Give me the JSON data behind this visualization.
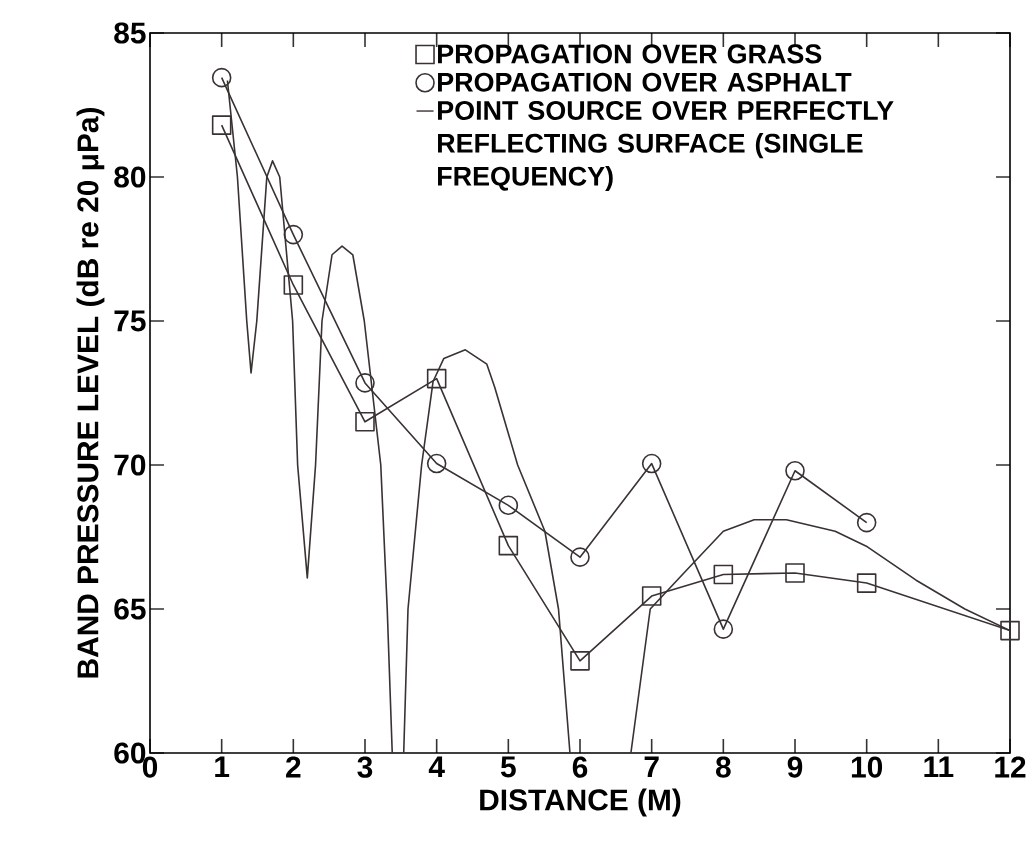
{
  "chart_data": {
    "type": "line",
    "xlabel": "DISTANCE (M)",
    "ylabel": "BAND PRESSURE LEVEL (dB re 20 μPa)",
    "xlim": [
      0,
      12
    ],
    "ylim": [
      60,
      85
    ],
    "xticks": [
      0,
      1,
      2,
      3,
      4,
      5,
      6,
      7,
      8,
      9,
      10,
      11,
      12
    ],
    "yticks": [
      60,
      65,
      70,
      75,
      80,
      85
    ],
    "legend": "top right",
    "grid": false,
    "series": [
      {
        "name": "PROPAGATION OVER GRASS",
        "color": "#3a3232",
        "marker": "square",
        "x": [
          1,
          2,
          3,
          4,
          5,
          6,
          7,
          8,
          9,
          10,
          12
        ],
        "values": [
          81.8,
          76.25,
          71.5,
          73.0,
          67.2,
          63.2,
          65.45,
          66.2,
          66.25,
          65.9,
          64.25
        ]
      },
      {
        "name": "PROPAGATION OVER ASPHALT",
        "color": "#3a3232",
        "marker": "circle",
        "x": [
          1,
          2,
          3,
          4,
          5,
          6,
          7,
          8,
          9,
          10
        ],
        "values": [
          83.45,
          78.0,
          72.85,
          70.05,
          68.6,
          66.8,
          70.05,
          64.3,
          69.8,
          68.0
        ]
      },
      {
        "name": "POINT SOURCE OVER PERFECTLY REFLECTING SURFACE (SINGLE FREQUENCY)",
        "color": "#3a3232",
        "marker": "none",
        "x": [
          1.08,
          1.22,
          1.35,
          1.41,
          1.49,
          1.63,
          1.71,
          1.81,
          1.99,
          2.06,
          2.195,
          2.31,
          2.4,
          2.54,
          2.68,
          2.83,
          2.99,
          3.22,
          3.31,
          3.38,
          3.46,
          3.54,
          3.6,
          3.79,
          3.95,
          4.1,
          4.4,
          4.7,
          4.81,
          5.13,
          5.51,
          5.7,
          5.86,
          6.3,
          6.71,
          6.98,
          7.43,
          8.0,
          8.43,
          8.88,
          9.56,
          10.01,
          10.69,
          11.37,
          12
        ],
        "values": [
          83.35,
          80,
          75,
          73.2,
          75,
          80,
          80.56,
          80,
          75,
          70,
          66.08,
          70,
          75,
          77.3,
          77.6,
          77.3,
          75,
          70,
          65,
          60,
          null,
          60,
          65,
          70,
          72.9,
          73.7,
          74.0,
          73.5,
          72.7,
          70,
          67.7,
          65,
          60,
          null,
          60,
          65,
          66.2,
          67.7,
          68.1,
          68.1,
          67.7,
          67.16,
          66.0,
          65.0,
          64.25
        ]
      }
    ]
  }
}
